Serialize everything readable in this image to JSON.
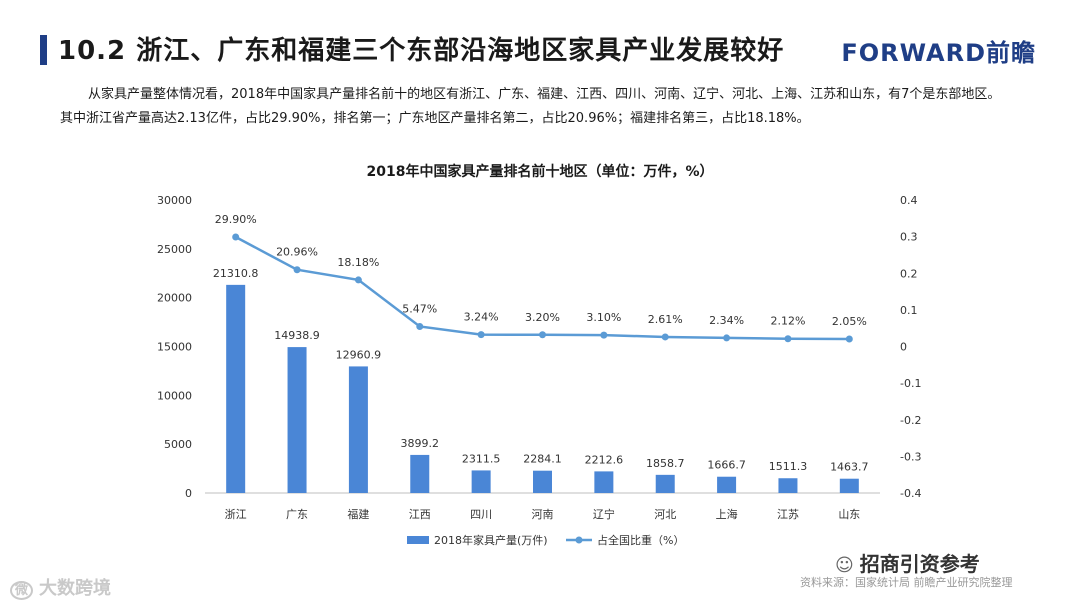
{
  "header": {
    "title": "10.2 浙江、广东和福建三个东部沿海地区家具产业发展较好",
    "logo": "FORWARD前瞻"
  },
  "description": {
    "line1": "从家具产量整体情况看，2018年中国家具产量排名前十的地区有浙江、广东、福建、江西、四川、河南、辽宁、河北、上海、江苏和山东，有7个是东部地区。",
    "line2": "其中浙江省产量高达2.13亿件，占比29.90%，排名第一；广东地区产量排名第二，占比20.96%；福建排名第三，占比18.18%。"
  },
  "chart_data": {
    "type": "bar",
    "title": "2018年中国家具产量排名前十地区（单位：万件，%）",
    "categories": [
      "浙江",
      "广东",
      "福建",
      "江西",
      "四川",
      "河南",
      "辽宁",
      "河北",
      "上海",
      "江苏",
      "山东"
    ],
    "series": [
      {
        "name": "2018年家具产量(万件)",
        "type": "bar",
        "axis": "left",
        "values": [
          21310.8,
          14938.9,
          12960.9,
          3899.2,
          2311.5,
          2284.1,
          2212.6,
          1858.7,
          1666.7,
          1511.3,
          1463.7
        ],
        "labels": [
          "21310.8",
          "14938.9",
          "12960.9",
          "3899.2",
          "2311.5",
          "2284.1",
          "2212.6",
          "1858.7",
          "1666.7",
          "1511.3",
          "1463.7"
        ],
        "color": "#4a86d6"
      },
      {
        "name": "占全国比重（%）",
        "type": "line",
        "axis": "right",
        "values": [
          0.299,
          0.2096,
          0.1818,
          0.0547,
          0.0324,
          0.032,
          0.031,
          0.0261,
          0.0234,
          0.0212,
          0.0205
        ],
        "labels": [
          "29.90%",
          "20.96%",
          "18.18%",
          "5.47%",
          "3.24%",
          "3.20%",
          "3.10%",
          "2.61%",
          "2.34%",
          "2.12%",
          "2.05%"
        ],
        "color": "#5b9bd5"
      }
    ],
    "y_left": {
      "min": 0,
      "max": 30000,
      "ticks": [
        "0",
        "5000",
        "10000",
        "15000",
        "20000",
        "25000",
        "30000"
      ]
    },
    "y_right": {
      "min": -0.4,
      "max": 0.4,
      "ticks": [
        "-0.4",
        "-0.3",
        "-0.2",
        "-0.1",
        "0",
        "0.1",
        "0.2",
        "0.3",
        "0.4"
      ]
    },
    "grid": false,
    "legend_position": "bottom"
  },
  "footer": {
    "source": "资料来源：国家统计局  前瞻产业研究院整理",
    "wechat": "招商引资参考",
    "weibo_brand": "大数跨境",
    "weibo_prefix": "微"
  }
}
